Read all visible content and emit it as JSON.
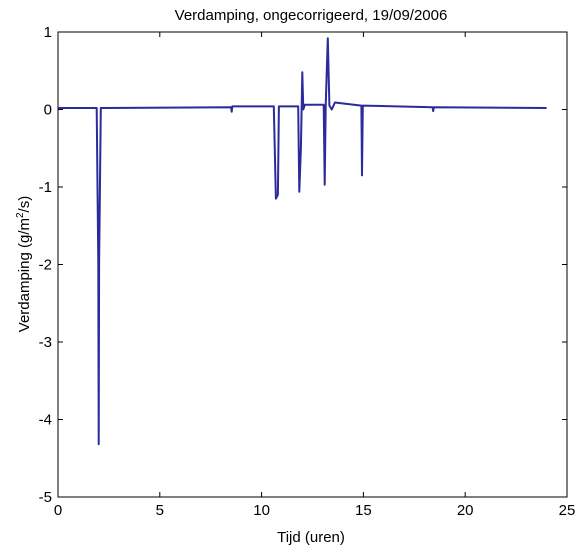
{
  "chart_data": {
    "type": "line",
    "title": "Verdamping, ongecorrigeerd, 19/09/2006",
    "xlabel": "Tijd (uren)",
    "ylabel_prefix": "Verdamping (g/m",
    "ylabel_sup": "2",
    "ylabel_suffix": "/s)",
    "xlim": [
      0,
      25
    ],
    "ylim": [
      -5,
      1
    ],
    "xticks": [
      0,
      5,
      10,
      15,
      20,
      25
    ],
    "yticks": [
      -5,
      -4,
      -3,
      -2,
      -1,
      0,
      1
    ],
    "xtick_labels": [
      "0",
      "5",
      "10",
      "15",
      "20",
      "25"
    ],
    "ytick_labels": [
      "-5",
      "-4",
      "-3",
      "-2",
      "-1",
      "0",
      "1"
    ],
    "grid": false,
    "series": [
      {
        "color": "#2b2b9b",
        "x": [
          0,
          1.9,
          1.98,
          2.0,
          2.02,
          2.1,
          8.5,
          8.53,
          8.56,
          10.6,
          10.7,
          10.8,
          10.85,
          11.8,
          11.85,
          11.93,
          12.0,
          12.05,
          12.12,
          13.05,
          13.1,
          13.15,
          13.25,
          13.33,
          13.45,
          13.6,
          14.9,
          14.93,
          14.97,
          18.4,
          18.43,
          18.46,
          24
        ],
        "y": [
          0.02,
          0.02,
          -2.0,
          -4.32,
          -2.0,
          0.02,
          0.03,
          -0.03,
          0.04,
          0.04,
          -1.15,
          -1.1,
          0.04,
          0.04,
          -1.06,
          -0.5,
          0.48,
          0.0,
          0.06,
          0.06,
          -0.97,
          0.05,
          0.92,
          0.05,
          0.0,
          0.09,
          0.05,
          -0.85,
          0.05,
          0.03,
          -0.02,
          0.03,
          0.02
        ]
      }
    ]
  }
}
